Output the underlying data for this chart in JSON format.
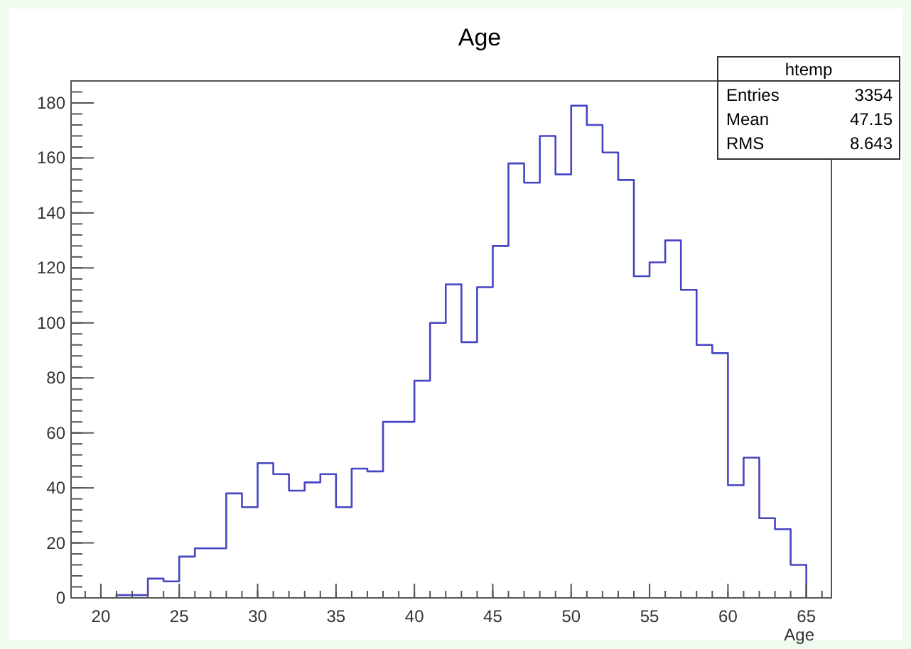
{
  "chart_data": {
    "type": "histogram",
    "title": "Age",
    "xlabel": "Age",
    "bins": [
      21,
      22,
      23,
      24,
      25,
      26,
      27,
      28,
      29,
      30,
      31,
      32,
      33,
      34,
      35,
      36,
      37,
      38,
      39,
      40,
      41,
      42,
      43,
      44,
      45,
      46,
      47,
      48,
      49,
      50,
      51,
      52,
      53,
      54,
      55,
      56,
      57,
      58,
      59,
      60,
      61,
      62,
      63,
      64,
      65
    ],
    "values": [
      1,
      1,
      7,
      6,
      15,
      18,
      18,
      38,
      33,
      49,
      45,
      39,
      42,
      45,
      33,
      47,
      46,
      64,
      64,
      79,
      100,
      114,
      93,
      113,
      128,
      158,
      151,
      168,
      154,
      179,
      172,
      162,
      152,
      117,
      122,
      130,
      112,
      92,
      89,
      41,
      51,
      29,
      25,
      12
    ],
    "color": "#4545c4",
    "xlim": [
      18.1,
      66.6
    ],
    "xticks": [
      20,
      25,
      30,
      35,
      40,
      45,
      50,
      55,
      60,
      65
    ],
    "ylim": [
      0,
      188
    ],
    "yticks": [
      0,
      20,
      40,
      60,
      80,
      100,
      120,
      140,
      160,
      180
    ],
    "annotations": [
      "htemp",
      "Entries",
      "3354",
      "Mean",
      "47.15",
      "RMS",
      "8.643"
    ],
    "grid": false
  }
}
